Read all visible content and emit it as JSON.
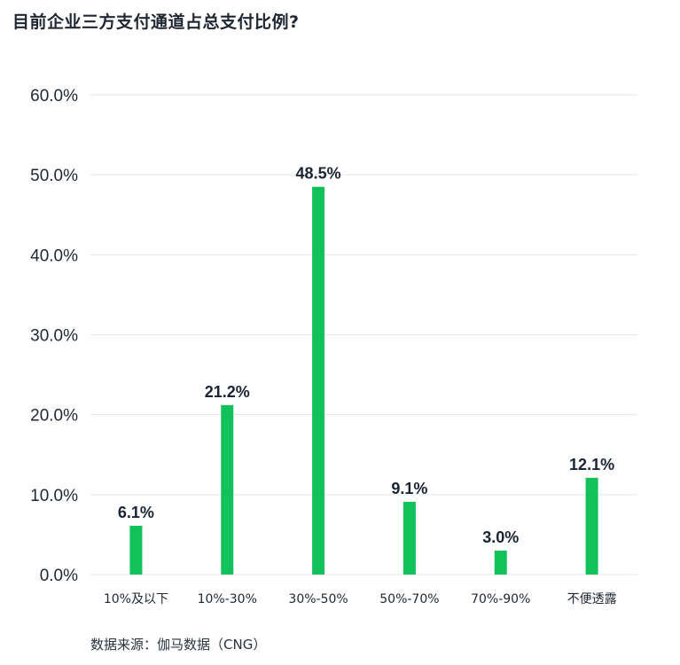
{
  "header": {
    "title": "目前企业三方支付通道占总支付比例?"
  },
  "footer": {
    "source": "数据来源：伽马数据（CNG）"
  },
  "colors": {
    "bar": "#12c15a",
    "grid": "#e3e5e8",
    "text": "#1f2733"
  },
  "chart_data": {
    "type": "bar",
    "title": "目前企业三方支付通道占总支付比例?",
    "xlabel": "",
    "ylabel": "",
    "categories": [
      "10%及以下",
      "10%-30%",
      "30%-50%",
      "50%-70%",
      "70%-90%",
      "不便透露"
    ],
    "values": [
      6.1,
      21.2,
      48.5,
      9.1,
      3.0,
      12.1
    ],
    "value_labels": [
      "6.1%",
      "21.2%",
      "48.5%",
      "9.1%",
      "3.0%",
      "12.1%"
    ],
    "ylim": [
      0,
      60
    ],
    "yticks": [
      0,
      10,
      20,
      30,
      40,
      50,
      60
    ],
    "ytick_labels": [
      "0.0%",
      "10.0%",
      "20.0%",
      "30.0%",
      "40.0%",
      "50.0%",
      "60.0%"
    ],
    "grid": true,
    "legend": "none"
  }
}
